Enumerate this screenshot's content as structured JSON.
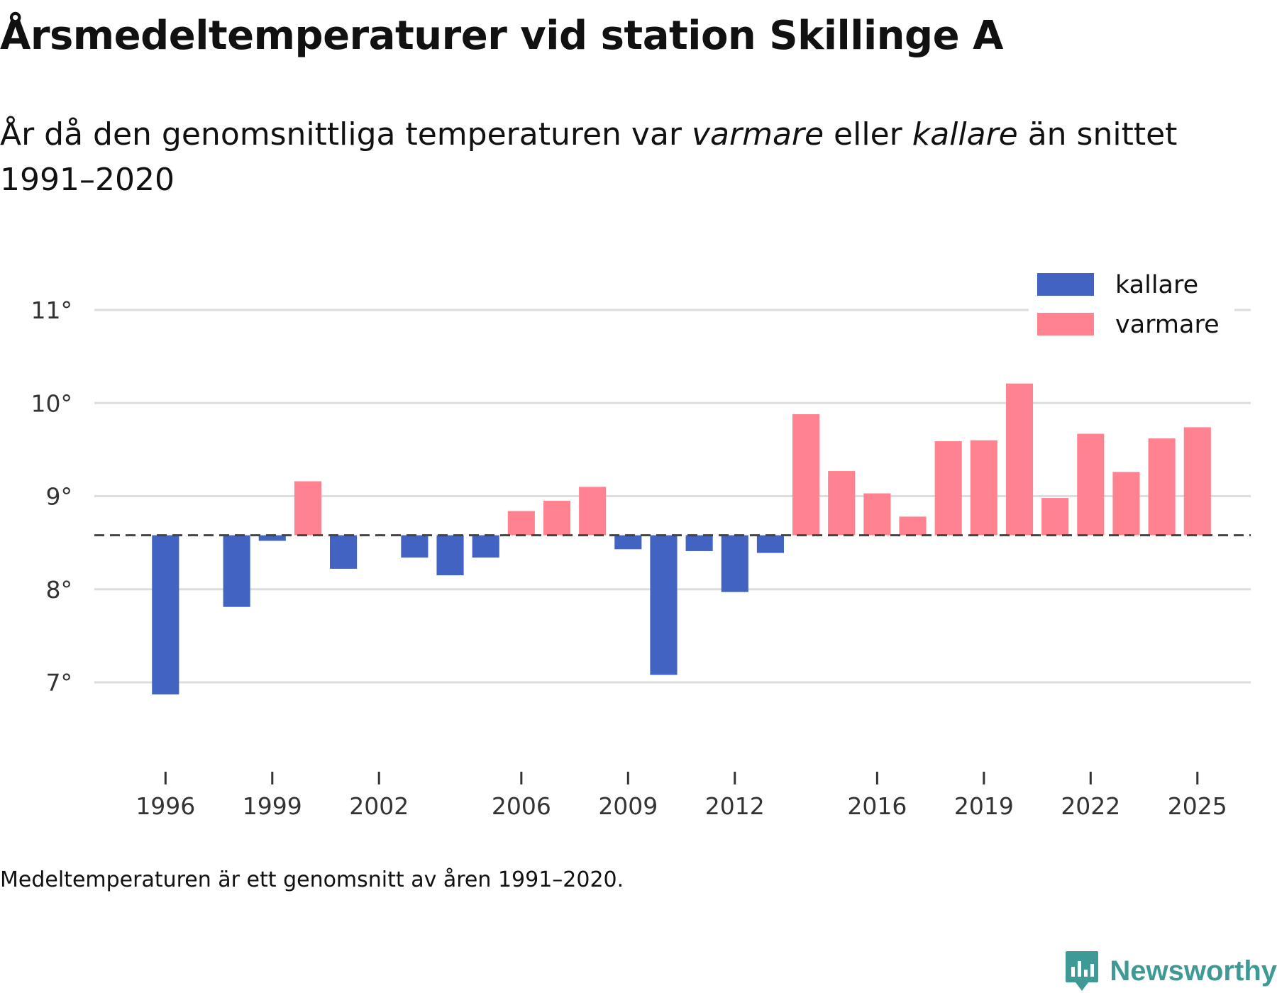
{
  "title": "Årsmedeltemperaturer vid station Skillinge A",
  "subtitle": {
    "part1": "År då den genomsnittliga temperaturen var ",
    "warm_word": "varmare",
    "part2": " eller ",
    "cold_word": "kallare",
    "part3": " än snittet 1991–2020"
  },
  "footnote": "Medeltemperaturen är ett genomsnitt av åren 1991–2020.",
  "brand": {
    "name": "Newsworthy",
    "icon": "newsworthy-logo-icon"
  },
  "colors": {
    "cold": "#4263c1",
    "warm": "#ff8290",
    "grid": "#dddddd",
    "baseline": "#444444"
  },
  "chart_data": {
    "type": "bar",
    "title": "Årsmedeltemperaturer vid station Skillinge A",
    "xlabel": "",
    "ylabel": "",
    "baseline": 8.58,
    "ylim": [
      6.2,
      11.5
    ],
    "y_ticks": [
      7,
      8,
      9,
      10,
      11
    ],
    "y_tick_labels": [
      "7°",
      "8°",
      "9°",
      "10°",
      "11°"
    ],
    "x_range": [
      1994,
      2026.5
    ],
    "x_ticks": [
      1996,
      1999,
      2002,
      2006,
      2009,
      2012,
      2016,
      2019,
      2022,
      2025
    ],
    "x_tick_labels": [
      "1996",
      "1999",
      "2002",
      "2006",
      "2009",
      "2012",
      "2016",
      "2019",
      "2022",
      "2025"
    ],
    "legend": [
      {
        "name": "kallare",
        "color": "#4263c1"
      },
      {
        "name": "varmare",
        "color": "#ff8290"
      }
    ],
    "legend_position": "top-right",
    "grid": true,
    "years": [
      1996,
      1998,
      1999,
      2000,
      2001,
      2003,
      2004,
      2005,
      2006,
      2007,
      2008,
      2009,
      2010,
      2011,
      2012,
      2013,
      2014,
      2015,
      2016,
      2017,
      2018,
      2019,
      2020,
      2021,
      2022,
      2023,
      2024,
      2025
    ],
    "values": [
      6.87,
      7.81,
      8.52,
      9.16,
      8.22,
      8.34,
      8.15,
      8.34,
      8.84,
      8.95,
      9.1,
      8.43,
      7.08,
      8.41,
      7.97,
      8.39,
      9.88,
      9.27,
      9.03,
      8.78,
      9.59,
      9.6,
      10.21,
      8.98,
      9.67,
      9.26,
      9.62,
      9.74
    ]
  }
}
